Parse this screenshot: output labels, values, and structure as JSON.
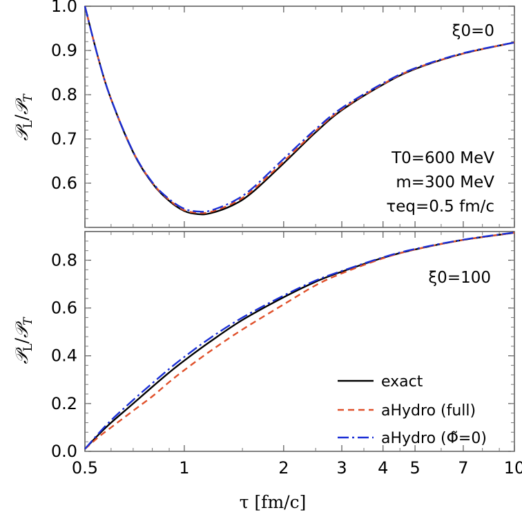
{
  "chart_data": [
    {
      "type": "line",
      "panel": "top",
      "annotation": "ξ0=0",
      "params": [
        "T0=600 MeV",
        "m=300 MeV",
        "τeq=0.5 fm/c"
      ],
      "ylabel": "P_L/P_T",
      "xlabel": "",
      "x_scale": "log",
      "xlim": [
        0.5,
        10
      ],
      "ylim": [
        0.5,
        1.0
      ],
      "y_ticks": [
        0.6,
        0.7,
        0.8,
        0.9,
        1.0
      ],
      "y_tick_labels": [
        "0.6",
        "0.7",
        "0.8",
        "0.9",
        "1.0"
      ],
      "series": [
        {
          "name": "exact",
          "color": "#000000",
          "dash": "solid",
          "x": [
            0.5,
            0.55,
            0.6,
            0.7,
            0.8,
            0.9,
            1.0,
            1.1,
            1.2,
            1.4,
            1.6,
            2.0,
            2.5,
            3.0,
            4.0,
            5.0,
            7.0,
            10.0
          ],
          "y": [
            1.0,
            0.88,
            0.79,
            0.67,
            0.6,
            0.56,
            0.537,
            0.53,
            0.532,
            0.55,
            0.578,
            0.645,
            0.715,
            0.765,
            0.823,
            0.858,
            0.893,
            0.918
          ]
        },
        {
          "name": "aHydro (full)",
          "color": "#e0502a",
          "dash": "dashed",
          "x": [
            0.5,
            0.55,
            0.6,
            0.7,
            0.8,
            0.9,
            1.0,
            1.1,
            1.2,
            1.4,
            1.6,
            2.0,
            2.5,
            3.0,
            4.0,
            5.0,
            7.0,
            10.0
          ],
          "y": [
            1.0,
            0.88,
            0.79,
            0.671,
            0.601,
            0.562,
            0.539,
            0.533,
            0.535,
            0.554,
            0.582,
            0.649,
            0.718,
            0.767,
            0.824,
            0.859,
            0.893,
            0.918
          ]
        },
        {
          "name": "aHydro (Φ̃=0)",
          "color": "#1a2fd6",
          "dash": "dashdot",
          "x": [
            0.5,
            0.55,
            0.6,
            0.7,
            0.8,
            0.9,
            1.0,
            1.1,
            1.2,
            1.4,
            1.6,
            2.0,
            2.5,
            3.0,
            4.0,
            5.0,
            7.0,
            10.0
          ],
          "y": [
            1.0,
            0.88,
            0.79,
            0.671,
            0.602,
            0.564,
            0.542,
            0.536,
            0.538,
            0.558,
            0.587,
            0.655,
            0.722,
            0.77,
            0.826,
            0.86,
            0.894,
            0.918
          ]
        }
      ]
    },
    {
      "type": "line",
      "panel": "bottom",
      "annotation": "ξ0=100",
      "ylabel": "P_L/P_T",
      "xlabel": "τ [fm/c]",
      "x_scale": "log",
      "xlim": [
        0.5,
        10
      ],
      "ylim": [
        0.0,
        0.92
      ],
      "x_ticks": [
        0.5,
        1,
        2,
        3,
        4,
        5,
        7,
        10
      ],
      "x_tick_labels": [
        "0.5",
        "1",
        "2",
        "3",
        "4",
        "5",
        "7",
        "10"
      ],
      "y_ticks": [
        0.0,
        0.2,
        0.4,
        0.6,
        0.8
      ],
      "y_tick_labels": [
        "0.0",
        "0.2",
        "0.4",
        "0.6",
        "0.8"
      ],
      "legend": "bottom-right",
      "series": [
        {
          "name": "exact",
          "color": "#000000",
          "dash": "solid",
          "x": [
            0.5,
            0.55,
            0.6,
            0.7,
            0.8,
            0.9,
            1.0,
            1.2,
            1.5,
            2.0,
            2.5,
            3.0,
            4.0,
            5.0,
            7.0,
            10.0
          ],
          "y": [
            0.01,
            0.07,
            0.12,
            0.2,
            0.27,
            0.33,
            0.38,
            0.46,
            0.55,
            0.645,
            0.71,
            0.752,
            0.81,
            0.845,
            0.885,
            0.915
          ]
        },
        {
          "name": "aHydro (full)",
          "color": "#e0502a",
          "dash": "dashed",
          "x": [
            0.5,
            0.55,
            0.6,
            0.7,
            0.8,
            0.9,
            1.0,
            1.2,
            1.5,
            2.0,
            2.5,
            3.0,
            4.0,
            5.0,
            7.0,
            10.0
          ],
          "y": [
            0.01,
            0.06,
            0.1,
            0.17,
            0.23,
            0.29,
            0.34,
            0.42,
            0.51,
            0.615,
            0.695,
            0.745,
            0.808,
            0.845,
            0.885,
            0.915
          ]
        },
        {
          "name": "aHydro (Φ̃=0)",
          "color": "#1a2fd6",
          "dash": "dashdot",
          "x": [
            0.5,
            0.55,
            0.6,
            0.7,
            0.8,
            0.9,
            1.0,
            1.2,
            1.5,
            2.0,
            2.5,
            3.0,
            4.0,
            5.0,
            7.0,
            10.0
          ],
          "y": [
            0.01,
            0.075,
            0.13,
            0.215,
            0.285,
            0.345,
            0.395,
            0.475,
            0.56,
            0.652,
            0.715,
            0.755,
            0.812,
            0.847,
            0.886,
            0.916
          ]
        }
      ]
    }
  ],
  "legend": {
    "exact": "exact",
    "full": "aHydro (full)",
    "phi": "aHydro (Φ̃=0)"
  }
}
